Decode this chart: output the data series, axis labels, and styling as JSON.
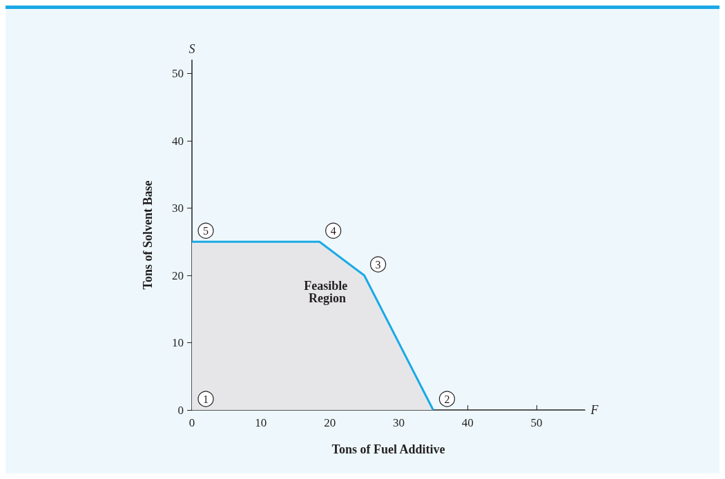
{
  "chart_data": {
    "type": "area",
    "xlabel": "Tons of Fuel Additive",
    "ylabel": "Tons of Solvent Base",
    "xlim": [
      0,
      57
    ],
    "xticks": [
      0,
      10,
      20,
      30,
      40,
      50
    ],
    "ylim": [
      0,
      52
    ],
    "yticks": [
      0,
      10,
      20,
      30,
      40,
      50
    ],
    "grid": false,
    "series": [
      {
        "color": "#1aa9e6",
        "x": [
          0,
          18.5,
          25,
          35
        ],
        "values": [
          25,
          25,
          20,
          0
        ]
      }
    ],
    "annotations": [
      "Feasible Region",
      "F",
      "S",
      {
        "text": "1",
        "x": 0,
        "y": 0
      },
      {
        "text": "2",
        "x": 35,
        "y": 0
      },
      {
        "text": "3",
        "x": 25,
        "y": 20
      },
      {
        "text": "4",
        "x": 18.5,
        "y": 25
      },
      {
        "text": "5",
        "x": 0,
        "y": 25
      }
    ]
  }
}
